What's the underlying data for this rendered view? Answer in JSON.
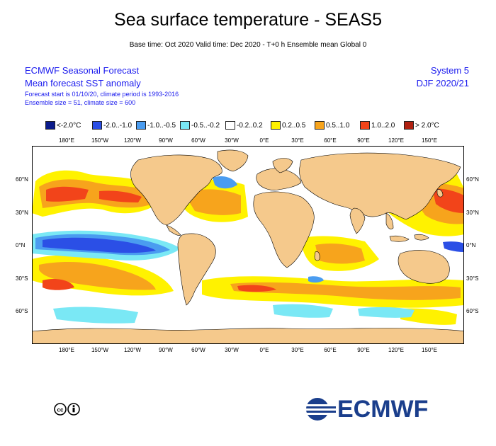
{
  "header": {
    "title": "Sea surface temperature - SEAS5",
    "subtitle": "Base time: Oct 2020 Valid time: Dec 2020 - T+0 h Ensemble mean Global 0",
    "left_line1": "ECMWF Seasonal Forecast",
    "left_line2": "Mean forecast SST anomaly",
    "left_line3": "Forecast start is 01/10/20, climate period is 1993-2016",
    "left_line4": "Ensemble size = 51, climate size = 600",
    "right_line1": "System 5",
    "right_line2": "DJF 2020/21"
  },
  "legend": [
    {
      "label": "<-2.0°C",
      "color": "#0a1a8a"
    },
    {
      "label": "-2.0..-1.0",
      "color": "#2b4fe6"
    },
    {
      "label": "-1.0..-0.5",
      "color": "#4a9cf0"
    },
    {
      "label": "-0.5..-0.2",
      "color": "#7ae8f5"
    },
    {
      "label": "-0.2..0.2",
      "color": "#ffffff"
    },
    {
      "label": "0.2..0.5",
      "color": "#fff200"
    },
    {
      "label": "0.5..1.0",
      "color": "#f7a41c"
    },
    {
      "label": "1.0..2.0",
      "color": "#f2441a"
    },
    {
      "label": "> 2.0°C",
      "color": "#b02010"
    }
  ],
  "map": {
    "lon_labels_top": [
      "180°E",
      "150°W",
      "120°W",
      "90°W",
      "60°W",
      "30°W",
      "0°E",
      "30°E",
      "60°E",
      "90°E",
      "120°E",
      "150°E"
    ],
    "lon_labels_bottom": [
      "180°E",
      "150°W",
      "120°W",
      "90°W",
      "60°W",
      "30°W",
      "0°E",
      "30°E",
      "60°E",
      "90°E",
      "120°E",
      "150°E"
    ],
    "lat_labels_left": [
      "60°N",
      "30°N",
      "0°N",
      "30°S",
      "60°S"
    ],
    "lat_labels_right": [
      "60°N",
      "30°N",
      "0°N",
      "30°S",
      "60°S"
    ],
    "land_color": "#f5c98c"
  },
  "footer": {
    "brand": "ECMWF",
    "brand_color": "#1a3e8c"
  }
}
